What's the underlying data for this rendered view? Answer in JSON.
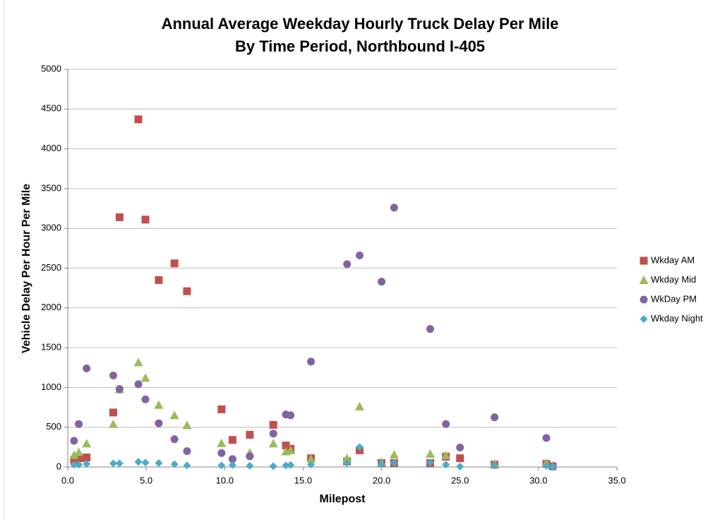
{
  "chart_data": {
    "type": "scatter",
    "title": [
      "Annual Average Weekday Hourly Truck Delay Per Mile",
      "By Time Period, Northbound I-405"
    ],
    "x_label": "Milepost",
    "y_label": "Vehicle Delay Per Hour Per Mile",
    "xlim": [
      0,
      35
    ],
    "xticks": [
      {
        "value": 0,
        "label": "0.0"
      },
      {
        "value": 5,
        "label": "5.0"
      },
      {
        "value": 10,
        "label": "10.0"
      },
      {
        "value": 15,
        "label": "15.0"
      },
      {
        "value": 20,
        "label": "20.0"
      },
      {
        "value": 25,
        "label": "25.0"
      },
      {
        "value": 30,
        "label": "30.0"
      },
      {
        "value": 35,
        "label": "35.0"
      }
    ],
    "ylim": [
      0,
      5000
    ],
    "yticks": [
      0,
      500,
      1000,
      1500,
      2000,
      2500,
      3000,
      3500,
      4000,
      4500,
      5000
    ],
    "grid": true,
    "legend": "right",
    "series": [
      {
        "name": "Wkday AM",
        "color": "#c0504d",
        "marker": "square",
        "x": [
          0.4,
          0.8,
          1.2,
          2.9,
          3.3,
          4.5,
          4.95,
          5.8,
          6.8,
          7.6,
          9.8,
          10.5,
          11.6,
          13.1,
          13.9,
          14.2,
          15.5,
          17.8,
          18.6,
          20,
          20.8,
          23.1,
          24.1,
          25,
          27.2,
          30.5,
          30.9
        ],
        "values": [
          90,
          110,
          120,
          685,
          3140,
          4370,
          3110,
          2350,
          2560,
          2210,
          725,
          340,
          405,
          530,
          270,
          230,
          110,
          70,
          210,
          50,
          50,
          50,
          130,
          110,
          30,
          40,
          10
        ]
      },
      {
        "name": "Wkday Mid",
        "color": "#9bbb59",
        "marker": "triangle",
        "x": [
          0.4,
          0.7,
          1.2,
          2.9,
          3.3,
          4.5,
          4.95,
          5.8,
          6.8,
          7.6,
          9.8,
          11.6,
          13.1,
          13.9,
          14.2,
          15.5,
          17.8,
          18.6,
          20,
          20.8,
          23.1,
          24.1,
          27.2,
          30.5,
          30.9
        ],
        "values": [
          150,
          185,
          295,
          540,
          975,
          1315,
          1120,
          780,
          650,
          525,
          300,
          180,
          295,
          195,
          210,
          100,
          110,
          760,
          60,
          155,
          165,
          145,
          40,
          50,
          20
        ]
      },
      {
        "name": "WkDay PM",
        "color": "#8064a2",
        "marker": "circle",
        "x": [
          0.4,
          0.7,
          1.2,
          2.9,
          3.3,
          4.5,
          4.95,
          5.8,
          6.8,
          7.6,
          9.8,
          10.5,
          11.6,
          13.1,
          13.9,
          14.2,
          15.5,
          17.8,
          18.6,
          20,
          20.8,
          23.1,
          24.1,
          25,
          27.2,
          30.5,
          30.9
        ],
        "values": [
          330,
          540,
          1240,
          1150,
          980,
          1040,
          850,
          550,
          350,
          200,
          175,
          100,
          135,
          420,
          660,
          650,
          1325,
          2550,
          2660,
          2330,
          3260,
          1735,
          540,
          245,
          625,
          365,
          5
        ]
      },
      {
        "name": "Wkday Night",
        "color": "#4bacc6",
        "marker": "diamond",
        "x": [
          0.4,
          0.7,
          1.2,
          2.9,
          3.3,
          4.5,
          4.95,
          5.8,
          6.8,
          7.6,
          9.8,
          10.5,
          11.6,
          13.1,
          13.9,
          14.2,
          15.5,
          17.8,
          18.6,
          20,
          20.8,
          23.1,
          24.1,
          25,
          27.2,
          30.5,
          30.9
        ],
        "values": [
          30,
          30,
          40,
          45,
          45,
          65,
          55,
          50,
          35,
          20,
          20,
          25,
          15,
          10,
          20,
          25,
          30,
          50,
          250,
          40,
          50,
          55,
          30,
          5,
          20,
          15,
          5
        ]
      }
    ]
  }
}
